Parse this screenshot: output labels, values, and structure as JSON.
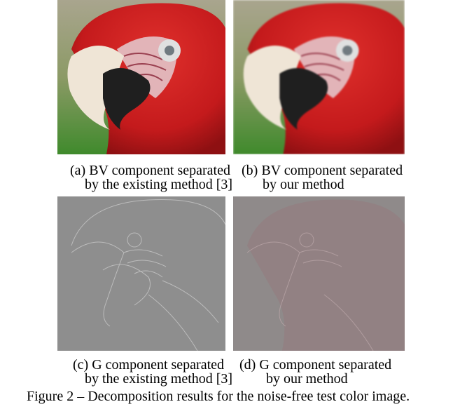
{
  "figure": {
    "panels": [
      {
        "caption_lines": [
          "(a) BV component separated",
          "by the existing method [3]"
        ]
      },
      {
        "caption_lines": [
          "(b) BV component separated",
          "by our method"
        ]
      },
      {
        "caption_lines": [
          "(c) G component separated",
          "by the existing method [3]"
        ]
      },
      {
        "caption_lines": [
          "(d) G component separated",
          "by our method"
        ]
      }
    ],
    "caption": "Figure 2 – Decomposition results for the noise-free test color image."
  }
}
